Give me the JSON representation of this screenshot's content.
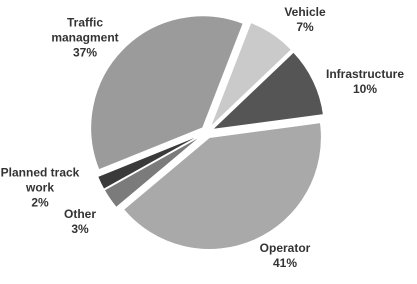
{
  "chart_data": {
    "type": "pie",
    "categories": [
      "Traffic managment",
      "Vehicle",
      "Infrastructure",
      "Operator",
      "Other",
      "Planned track work"
    ],
    "values": [
      37,
      7,
      10,
      41,
      3,
      2
    ],
    "value_labels": [
      "37%",
      "7%",
      "10%",
      "41%",
      "3%",
      "2%"
    ],
    "colors": [
      "#9b9b9b",
      "#cacaca",
      "#555555",
      "#a9a9a9",
      "#7b7b7b",
      "#3a3a3a"
    ]
  }
}
